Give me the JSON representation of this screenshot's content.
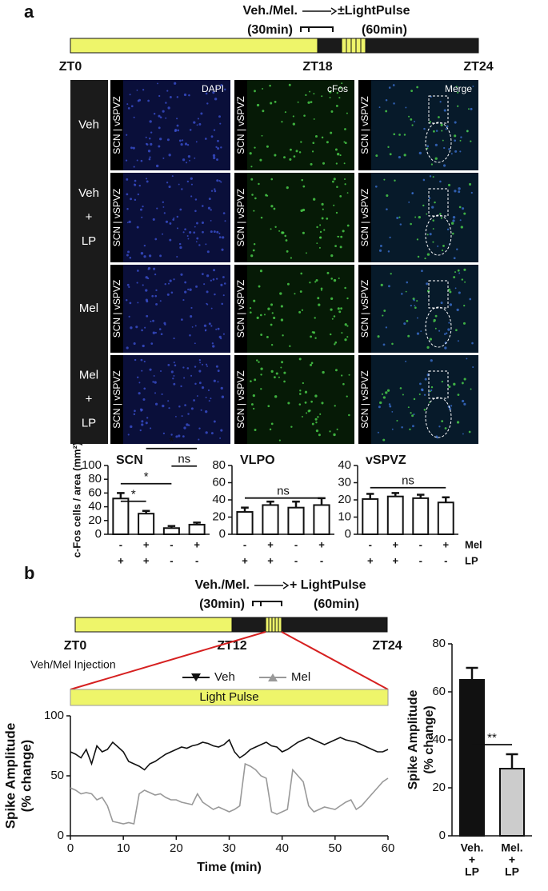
{
  "panels": [
    "a",
    "b"
  ],
  "timelines": [
    {
      "title": "Veh./Mel.",
      "pulse": "±LightPulse",
      "durations": [
        "(30min)",
        "(60min)"
      ],
      "ticks": [
        "ZT0",
        "ZT18",
        "ZT24"
      ]
    },
    {
      "title": "Veh./Mel.",
      "pulse": "+ LightPulse",
      "durations": [
        "(30min)",
        "(60min)"
      ],
      "ticks": [
        "ZT0",
        "ZT12",
        "ZT24"
      ],
      "note": "Veh/Mel Injection"
    }
  ],
  "micrographs": {
    "rows": [
      [
        "Veh"
      ],
      [
        "Veh",
        "+",
        "LP"
      ],
      [
        "Mel"
      ],
      [
        "Mel",
        "+",
        "LP"
      ]
    ],
    "columns": [
      "DAPI",
      "cFos",
      "Merge"
    ],
    "region_label": "SCN | vSPVZ"
  },
  "chart_data": [
    {
      "type": "bar",
      "title": "SCN",
      "ylabel": "c-Fos cells / area (mm²)",
      "values": [
        52,
        30,
        9,
        14
      ],
      "errors": [
        8,
        4,
        3,
        3
      ],
      "ylim": [
        0,
        100
      ],
      "yticks": [
        0,
        20,
        40,
        60,
        80,
        100
      ],
      "conditions": [
        {
          "values": [
            "-",
            "+",
            "-",
            "+"
          ]
        },
        {
          "values": [
            "+",
            "+",
            "-",
            "-"
          ]
        }
      ],
      "annotations": [
        {
          "text": "*",
          "between": [
            0,
            1
          ]
        },
        {
          "text": "*",
          "between": [
            0,
            2
          ]
        },
        {
          "text": "ns",
          "between": [
            2,
            3
          ]
        },
        {
          "text": "*",
          "between": [
            1,
            3
          ]
        }
      ]
    },
    {
      "type": "bar",
      "title": "VLPO",
      "values": [
        26,
        34,
        31,
        34
      ],
      "errors": [
        5,
        4,
        7,
        8
      ],
      "ylim": [
        0,
        80
      ],
      "yticks": [
        0,
        20,
        40,
        60,
        80
      ],
      "conditions": [
        {
          "values": [
            "-",
            "+",
            "-",
            "+"
          ]
        },
        {
          "values": [
            "+",
            "+",
            "-",
            "-"
          ]
        }
      ],
      "annotations": [
        {
          "text": "ns",
          "between": [
            0,
            3
          ]
        }
      ]
    },
    {
      "type": "bar",
      "title": "vSPVZ",
      "values": [
        20.5,
        22,
        21,
        18.5
      ],
      "errors": [
        3,
        2,
        2,
        3
      ],
      "ylim": [
        0,
        40
      ],
      "yticks": [
        0,
        10,
        20,
        30,
        40
      ],
      "conditions": [
        {
          "name": "Mel",
          "values": [
            "-",
            "+",
            "-",
            "+"
          ]
        },
        {
          "name": "LP",
          "values": [
            "+",
            "+",
            "-",
            "-"
          ]
        }
      ],
      "annotations": [
        {
          "text": "ns",
          "between": [
            0,
            3
          ]
        }
      ]
    },
    {
      "type": "line",
      "annotation": "Light Pulse",
      "xlabel": "Time (min)",
      "ylabel": [
        "Spike Amplitude",
        "(% change)"
      ],
      "x": [
        0,
        1,
        2,
        3,
        4,
        5,
        6,
        7,
        8,
        9,
        10,
        11,
        12,
        13,
        14,
        15,
        16,
        17,
        18,
        19,
        20,
        21,
        22,
        23,
        24,
        25,
        26,
        27,
        28,
        29,
        30,
        31,
        32,
        33,
        34,
        35,
        36,
        37,
        38,
        39,
        40,
        41,
        42,
        43,
        44,
        45,
        46,
        47,
        48,
        49,
        50,
        51,
        52,
        53,
        54,
        55,
        56,
        57,
        58,
        59,
        60
      ],
      "xlim": [
        0,
        60
      ],
      "xticks": [
        0,
        10,
        20,
        30,
        40,
        50,
        60
      ],
      "ylim": [
        0,
        100
      ],
      "yticks": [
        0,
        50,
        100
      ],
      "series": [
        {
          "name": "Veh",
          "color": "#111111",
          "values": [
            70,
            68,
            65,
            72,
            60,
            75,
            70,
            72,
            78,
            74,
            70,
            62,
            60,
            58,
            55,
            60,
            62,
            65,
            68,
            70,
            72,
            74,
            73,
            75,
            76,
            78,
            77,
            75,
            74,
            76,
            80,
            70,
            65,
            68,
            72,
            74,
            76,
            78,
            75,
            74,
            70,
            72,
            75,
            78,
            80,
            82,
            80,
            78,
            76,
            78,
            80,
            82,
            80,
            79,
            78,
            76,
            74,
            72,
            70,
            70,
            72
          ]
        },
        {
          "name": "Mel",
          "color": "#999999",
          "values": [
            40,
            38,
            35,
            36,
            35,
            30,
            32,
            25,
            12,
            11,
            10,
            11,
            10,
            35,
            38,
            36,
            34,
            35,
            32,
            30,
            30,
            28,
            27,
            26,
            35,
            28,
            25,
            22,
            24,
            22,
            20,
            22,
            25,
            60,
            58,
            55,
            50,
            48,
            20,
            18,
            20,
            22,
            55,
            50,
            45,
            25,
            20,
            22,
            24,
            23,
            22,
            25,
            28,
            30,
            22,
            25,
            30,
            35,
            40,
            45,
            48
          ]
        }
      ]
    },
    {
      "type": "bar",
      "ylabel": [
        "Spike Amplitude",
        "(% change)"
      ],
      "categories": [
        [
          "Veh.",
          "+",
          "LP"
        ],
        [
          "Mel.",
          "+",
          "LP"
        ]
      ],
      "values": [
        65,
        28
      ],
      "errors": [
        5,
        6
      ],
      "colors": [
        "#111111",
        "#cccccc"
      ],
      "ylim": [
        0,
        80
      ],
      "yticks": [
        0,
        20,
        40,
        60,
        80
      ],
      "annotations": [
        {
          "text": "**",
          "between": [
            0,
            1
          ]
        }
      ]
    }
  ]
}
